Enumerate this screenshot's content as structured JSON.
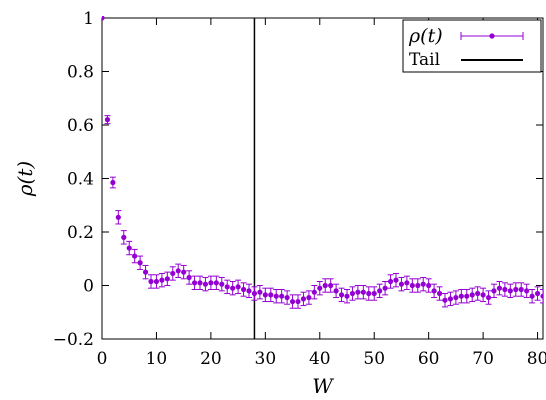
{
  "chart_data": {
    "type": "scatter",
    "title": "",
    "xlabel": "W",
    "ylabel": "ρ(t)",
    "xlim": [
      0,
      81
    ],
    "ylim": [
      -0.2,
      1.0
    ],
    "x_ticks": [
      "0",
      "10",
      "20",
      "30",
      "40",
      "50",
      "60",
      "70",
      "80"
    ],
    "y_ticks": [
      "−0.2",
      "0",
      "0.2",
      "0.4",
      "0.6",
      "0.8",
      "1"
    ],
    "grid": false,
    "legend_position": "top-right",
    "legend": [
      "ρ(t)",
      "Tail"
    ],
    "colors": {
      "series": "#9400d3",
      "tail": "#000000"
    },
    "series": [
      {
        "name": "ρ(t)",
        "errorbars": true,
        "x": [
          0,
          1,
          2,
          3,
          4,
          5,
          6,
          7,
          8,
          9,
          10,
          11,
          12,
          13,
          14,
          15,
          16,
          17,
          18,
          19,
          20,
          21,
          22,
          23,
          24,
          25,
          26,
          27,
          28,
          29,
          30,
          31,
          32,
          33,
          34,
          35,
          36,
          37,
          38,
          39,
          40,
          41,
          42,
          43,
          44,
          45,
          46,
          47,
          48,
          49,
          50,
          51,
          52,
          53,
          54,
          55,
          56,
          57,
          58,
          59,
          60,
          61,
          62,
          63,
          64,
          65,
          66,
          67,
          68,
          69,
          70,
          71,
          72,
          73,
          74,
          75,
          76,
          77,
          78,
          79,
          80,
          81
        ],
        "y": [
          1.0,
          0.62,
          0.385,
          0.255,
          0.18,
          0.14,
          0.11,
          0.085,
          0.05,
          0.015,
          0.015,
          0.02,
          0.025,
          0.045,
          0.055,
          0.05,
          0.03,
          0.01,
          0.01,
          0.005,
          0.01,
          0.01,
          0.005,
          -0.005,
          -0.01,
          -0.005,
          -0.015,
          -0.02,
          -0.03,
          -0.025,
          -0.035,
          -0.035,
          -0.04,
          -0.04,
          -0.045,
          -0.06,
          -0.06,
          -0.05,
          -0.045,
          -0.025,
          -0.01,
          0.0,
          0.0,
          -0.02,
          -0.035,
          -0.04,
          -0.03,
          -0.025,
          -0.025,
          -0.03,
          -0.03,
          -0.02,
          -0.01,
          0.015,
          0.02,
          0.005,
          0.01,
          0.0,
          0.0,
          0.005,
          0.0,
          -0.02,
          -0.03,
          -0.055,
          -0.05,
          -0.045,
          -0.04,
          -0.04,
          -0.035,
          -0.03,
          -0.035,
          -0.045,
          -0.02,
          -0.01,
          -0.015,
          -0.02,
          -0.015,
          -0.015,
          -0.02,
          -0.04,
          -0.03,
          -0.04
        ],
        "err": [
          0.0,
          0.015,
          0.02,
          0.025,
          0.025,
          0.025,
          0.025,
          0.025,
          0.025,
          0.025,
          0.025,
          0.025,
          0.025,
          0.025,
          0.025,
          0.025,
          0.025,
          0.025,
          0.025,
          0.025,
          0.025,
          0.025,
          0.025,
          0.025,
          0.025,
          0.025,
          0.025,
          0.025,
          0.025,
          0.025,
          0.025,
          0.025,
          0.025,
          0.025,
          0.025,
          0.025,
          0.025,
          0.025,
          0.025,
          0.025,
          0.025,
          0.025,
          0.025,
          0.025,
          0.025,
          0.025,
          0.025,
          0.025,
          0.025,
          0.025,
          0.025,
          0.025,
          0.025,
          0.025,
          0.025,
          0.025,
          0.025,
          0.025,
          0.025,
          0.025,
          0.025,
          0.025,
          0.025,
          0.025,
          0.025,
          0.025,
          0.025,
          0.025,
          0.025,
          0.025,
          0.025,
          0.025,
          0.025,
          0.025,
          0.025,
          0.025,
          0.025,
          0.025,
          0.025,
          0.025,
          0.025,
          0.025
        ]
      },
      {
        "name": "Tail",
        "type": "vline",
        "x": 28
      }
    ]
  }
}
